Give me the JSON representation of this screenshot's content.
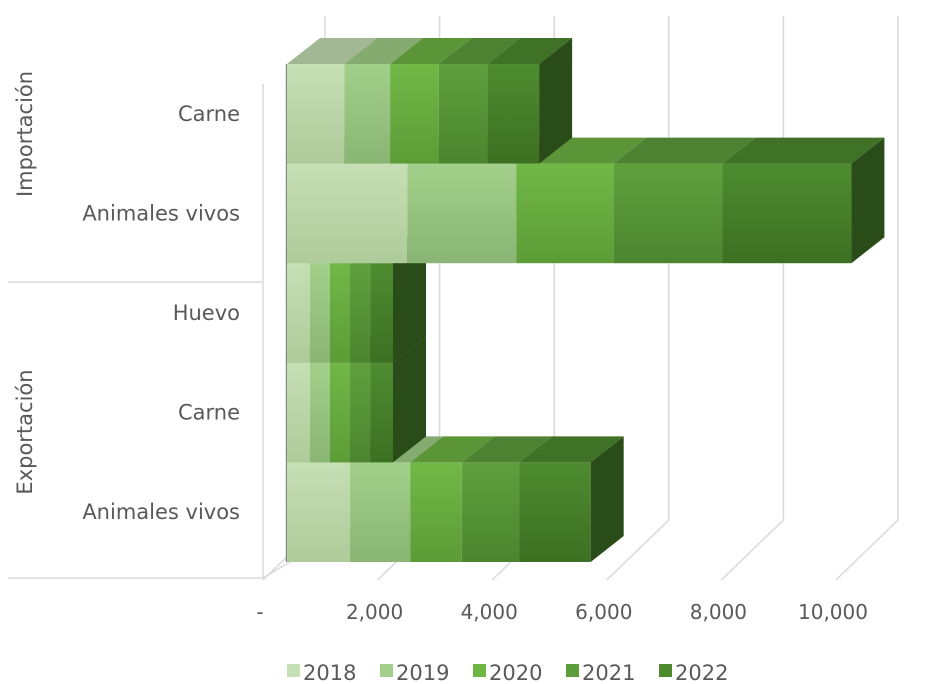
{
  "chart_data": {
    "type": "bar",
    "orientation": "horizontal",
    "stacked": true,
    "style": "3d",
    "groups": [
      {
        "label": "Importación",
        "categories": [
          "Carne",
          "Animales vivos"
        ]
      },
      {
        "label": "Exportación",
        "categories": [
          "Huevo",
          "Carne",
          "Animales vivos"
        ]
      }
    ],
    "categories": [
      "Importación - Carne",
      "Importación - Animales vivos",
      "Exportación - Huevo",
      "Exportación - Carne",
      "Exportación - Animales vivos"
    ],
    "category_labels": [
      "Carne",
      "Animales vivos",
      "Huevo",
      "Carne",
      "Animales vivos"
    ],
    "series": [
      {
        "name": "2018",
        "color": "#c6dfb5",
        "values": [
          1000,
          2100,
          400,
          400,
          1100
        ]
      },
      {
        "name": "2019",
        "color": "#a2d08a",
        "values": [
          800,
          1900,
          350,
          350,
          1050
        ]
      },
      {
        "name": "2020",
        "color": "#6fb644",
        "values": [
          850,
          1700,
          350,
          350,
          900
        ]
      },
      {
        "name": "2021",
        "color": "#5d9e3c",
        "values": [
          850,
          1900,
          350,
          350,
          1000
        ]
      },
      {
        "name": "2022",
        "color": "#4d8a2e",
        "values": [
          900,
          2250,
          400,
          400,
          1250
        ]
      }
    ],
    "x_tick_labels": [
      "-",
      "2,000",
      "4,000",
      "6,000",
      "8,000",
      "10,000"
    ],
    "x_ticks": [
      0,
      2000,
      4000,
      6000,
      8000,
      10000
    ],
    "xlim": [
      0,
      10000
    ],
    "legend_position": "bottom",
    "grid": true
  }
}
